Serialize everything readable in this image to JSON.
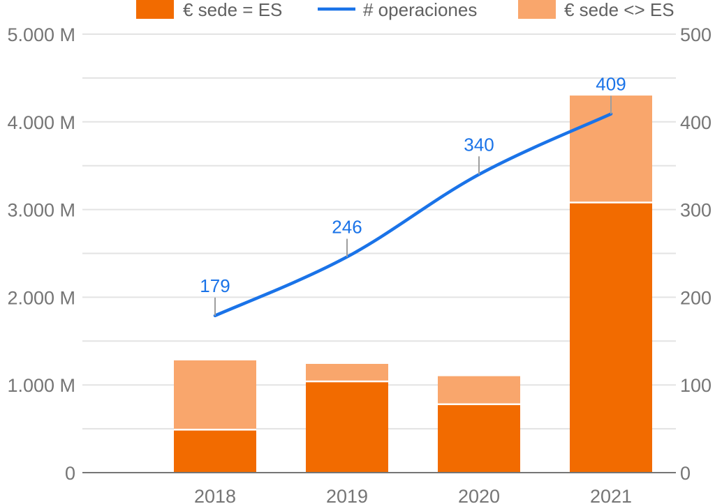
{
  "chart_data": {
    "type": "bar",
    "stacked": true,
    "categories": [
      "2018",
      "2019",
      "2020",
      "2021"
    ],
    "series": [
      {
        "name": "€ sede = ES",
        "type": "bar",
        "axis": "left",
        "color": "#f26b00",
        "values": [
          490,
          1040,
          780,
          3080
        ]
      },
      {
        "name": "€ sede <> ES",
        "type": "bar",
        "axis": "left",
        "color": "#f9a66c",
        "values": [
          790,
          200,
          320,
          1220
        ]
      },
      {
        "name": "# operaciones",
        "type": "line",
        "axis": "right",
        "color": "#1a73e8",
        "values": [
          179,
          246,
          340,
          409
        ],
        "data_labels": [
          "179",
          "246",
          "340",
          "409"
        ]
      }
    ],
    "legend_order": [
      "€ sede = ES",
      "# operaciones",
      "€ sede <> ES"
    ],
    "left_axis": {
      "ylim": [
        0,
        5000
      ],
      "ticks": [
        0,
        1000,
        2000,
        3000,
        4000,
        5000
      ],
      "tick_labels": [
        "0",
        "1.000 M",
        "2.000 M",
        "3.000 M",
        "4.000 M",
        "5.000 M"
      ]
    },
    "right_axis": {
      "ylim": [
        0,
        500
      ],
      "ticks": [
        0,
        100,
        200,
        300,
        400,
        500
      ],
      "tick_labels": [
        "0",
        "100",
        "200",
        "300",
        "400",
        "500"
      ]
    },
    "grid": true,
    "legend_position": "top"
  }
}
